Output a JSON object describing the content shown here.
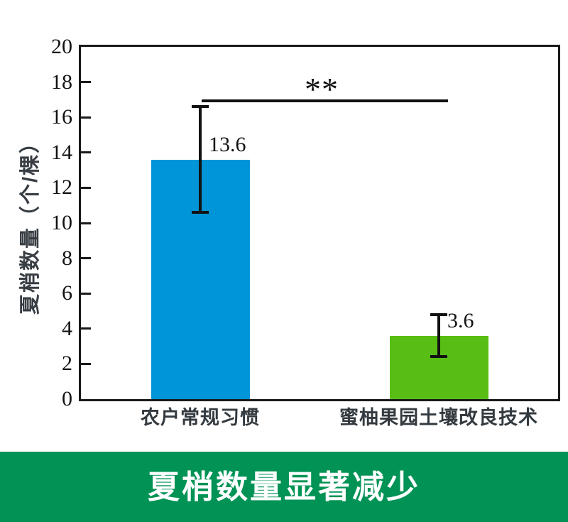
{
  "banner": {
    "text": "夏梢数量显著减少",
    "bg_color": "#009355",
    "text_color": "#ffffff"
  },
  "chart_data": {
    "type": "bar",
    "title": "",
    "categories": [
      "农户常规习惯",
      "蜜柚果园土壤改良技术"
    ],
    "values": [
      13.6,
      3.6
    ],
    "data_labels": [
      "13.6",
      "3.6"
    ],
    "error_bars": [
      {
        "plus": 3.0,
        "minus": 3.0
      },
      {
        "plus": 1.2,
        "minus": 1.2
      }
    ],
    "bar_colors": [
      "#0095d9",
      "#59be14"
    ],
    "ylabel": "夏梢数量（个/棵）",
    "xlabel": "",
    "ylim": [
      0,
      20
    ],
    "ytick_step": 2,
    "grid": false,
    "legend": null,
    "significance": {
      "label": "**",
      "y_value": 17,
      "connects": [
        "农户常规习惯",
        "蜜柚果园土壤改良技术"
      ]
    },
    "axis_color": "#1a1a1a",
    "category_label_color": "#333a40"
  }
}
